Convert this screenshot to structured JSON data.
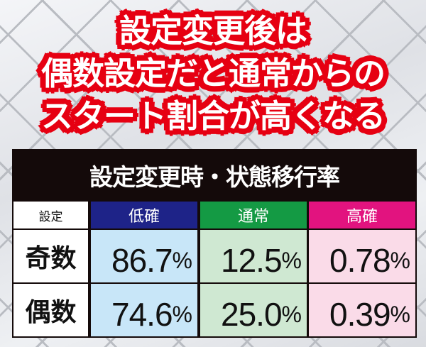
{
  "headline": {
    "lines": [
      "設定変更後は",
      "偶数設定だと通常からの",
      "スタート割合が高くなる"
    ]
  },
  "table": {
    "title": "設定変更時・状態移行率",
    "corner_label": "設定",
    "columns": [
      {
        "label": "低確",
        "header_color": "#1e2388",
        "cell_color": "#c8e6f8"
      },
      {
        "label": "通常",
        "header_color": "#149a44",
        "cell_color": "#cfe8d2"
      },
      {
        "label": "高確",
        "header_color": "#e2137f",
        "cell_color": "#fadbe8"
      }
    ],
    "rows": [
      {
        "label": "奇数",
        "values": [
          "86.7",
          "12.5",
          "0.78"
        ]
      },
      {
        "label": "偶数",
        "values": [
          "74.6",
          "25.0",
          "0.39"
        ]
      }
    ],
    "unit": "%"
  }
}
